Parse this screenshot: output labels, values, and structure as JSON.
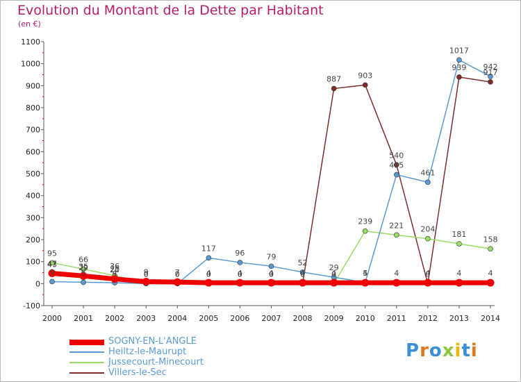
{
  "title": "Evolution du Montant de la Dette par Habitant",
  "subtitle": "(en €)",
  "logo": "Proxiti",
  "colors": {
    "title": "#b51d6a",
    "axis": "#555555",
    "grid_tick": "#dd0000"
  },
  "chart_data": {
    "type": "line",
    "title": "Evolution du Montant de la Dette par Habitant",
    "ylabel": "(en €)",
    "xlabel": "",
    "x": [
      "2000",
      "2001",
      "2002",
      "2003",
      "2004",
      "2005",
      "2006",
      "2007",
      "2008",
      "2009",
      "2010",
      "2011",
      "2012",
      "2013",
      "2014"
    ],
    "ylim": [
      -100,
      1100
    ],
    "yticks": [
      -100,
      0,
      100,
      200,
      300,
      400,
      500,
      600,
      700,
      800,
      900,
      1000,
      1100
    ],
    "grid": false,
    "legend_position": "bottom-left",
    "series": [
      {
        "name": "SOGNY-EN-L'ANGLE",
        "color": "#ee0000",
        "values": [
          47,
          35,
          21,
          9,
          7,
          4,
          4,
          4,
          4,
          4,
          4,
          4,
          4,
          4,
          4
        ],
        "labels": [
          "47",
          "35",
          "21",
          "9",
          "7",
          "4",
          "4",
          "4",
          "4",
          "4",
          "4",
          "4",
          "4",
          "4",
          "4"
        ]
      },
      {
        "name": "Heiltz-le-Maurupt",
        "color": "#5b9bd5",
        "values": [
          9,
          6,
          4,
          0,
          0,
          117,
          96,
          79,
          52,
          29,
          5,
          495,
          461,
          1017,
          942
        ],
        "labels": [
          "9",
          "6",
          "4",
          "0",
          "0",
          "117",
          "96",
          "79",
          "52",
          "29",
          "5",
          "495",
          "461",
          "1017",
          "942"
        ]
      },
      {
        "name": "Jussecourt-Minecourt",
        "color": "#99dd66",
        "values": [
          95,
          66,
          36,
          0,
          0,
          0,
          0,
          0,
          0,
          0,
          239,
          221,
          204,
          181,
          158
        ],
        "labels": [
          "95",
          "66",
          "36",
          "0",
          "0",
          "0",
          "0",
          "0",
          "0",
          "0",
          "239",
          "221",
          "204",
          "181",
          "158"
        ]
      },
      {
        "name": "Villers-le-Sec",
        "color": "#7f2c2c",
        "values": [
          43,
          29,
          20,
          0,
          0,
          0,
          0,
          0,
          0,
          887,
          903,
          540,
          0,
          939,
          917
        ],
        "labels": [
          "43",
          "29",
          "20",
          "0",
          "0",
          "0",
          "0",
          "0",
          "0",
          "887",
          "903",
          "540",
          "0",
          "939",
          "917"
        ]
      }
    ]
  }
}
